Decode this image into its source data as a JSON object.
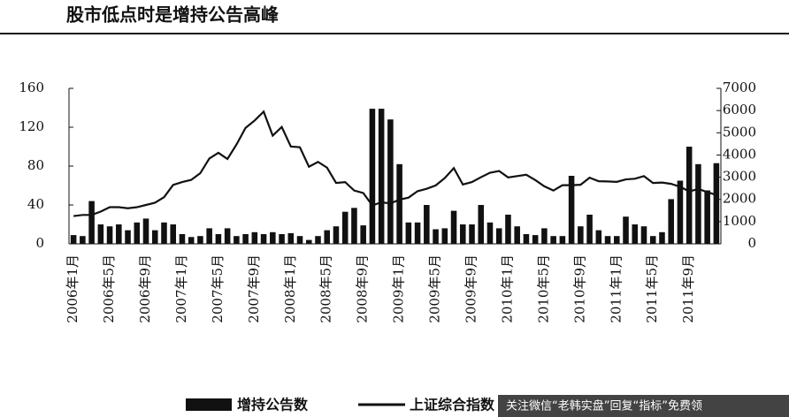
{
  "chart_data": {
    "type": "bar-line",
    "title": "股市低点时是增持公告高峰",
    "watermark": "关注微信“老韩实盘”回复“指标”免费领",
    "categories": [
      "2006年1月",
      null,
      null,
      null,
      "2006年5月",
      null,
      null,
      null,
      "2006年9月",
      null,
      null,
      null,
      "2007年1月",
      null,
      null,
      null,
      "2007年5月",
      null,
      null,
      null,
      "2007年9月",
      null,
      null,
      null,
      "2008年1月",
      null,
      null,
      null,
      "2008年5月",
      null,
      null,
      null,
      "2008年9月",
      null,
      null,
      null,
      "2009年1月",
      null,
      null,
      null,
      "2009年5月",
      null,
      null,
      null,
      "2009年9月",
      null,
      null,
      null,
      "2010年1月",
      null,
      null,
      null,
      "2010年5月",
      null,
      null,
      null,
      "2010年9月",
      null,
      null,
      null,
      "2011年1月",
      null,
      null,
      null,
      "2011年5月",
      null,
      null,
      null,
      "2011年9月",
      null,
      null,
      null
    ],
    "series": [
      {
        "name": "增持公告数",
        "color": "#111111",
        "values": [
          9,
          8,
          44,
          20,
          18,
          20,
          14,
          22,
          26,
          14,
          22,
          20,
          10,
          7,
          8,
          16,
          10,
          16,
          8,
          10,
          12,
          10,
          12,
          10,
          11,
          8,
          4,
          8,
          14,
          18,
          33,
          37,
          19,
          139,
          139,
          128,
          82,
          22,
          22,
          40,
          15,
          16,
          34,
          20,
          20,
          40,
          22,
          16,
          30,
          18,
          10,
          9,
          16,
          8,
          8,
          70,
          18,
          30,
          14,
          8,
          8,
          28,
          20,
          18,
          8,
          12,
          46,
          65,
          100,
          82,
          55,
          83
        ]
      },
      {
        "name": "上证综合指数",
        "color": "#111111",
        "axis": "y2",
        "values": [
          1250,
          1300,
          1300,
          1450,
          1650,
          1650,
          1600,
          1650,
          1750,
          1850,
          2100,
          2650,
          2780,
          2880,
          3180,
          3840,
          4100,
          3820,
          4470,
          5220,
          5550,
          5950,
          4870,
          5260,
          4380,
          4350,
          3470,
          3690,
          3430,
          2740,
          2780,
          2400,
          2290,
          1730,
          1870,
          1820,
          1990,
          2080,
          2370,
          2480,
          2630,
          2960,
          3410,
          2670,
          2780,
          3000,
          3200,
          3280,
          2990,
          3050,
          3110,
          2870,
          2590,
          2400,
          2640,
          2640,
          2660,
          2980,
          2820,
          2810,
          2790,
          2900,
          2930,
          3050,
          2740,
          2760,
          2700,
          2570,
          2360,
          2470,
          2330,
          2200
        ]
      }
    ],
    "ylim": [
      0,
      160
    ],
    "yticks": [
      0,
      40,
      80,
      120,
      160
    ],
    "y2lim": [
      0,
      7000
    ],
    "y2ticks": [
      0,
      1000,
      2000,
      3000,
      4000,
      5000,
      6000,
      7000
    ]
  }
}
